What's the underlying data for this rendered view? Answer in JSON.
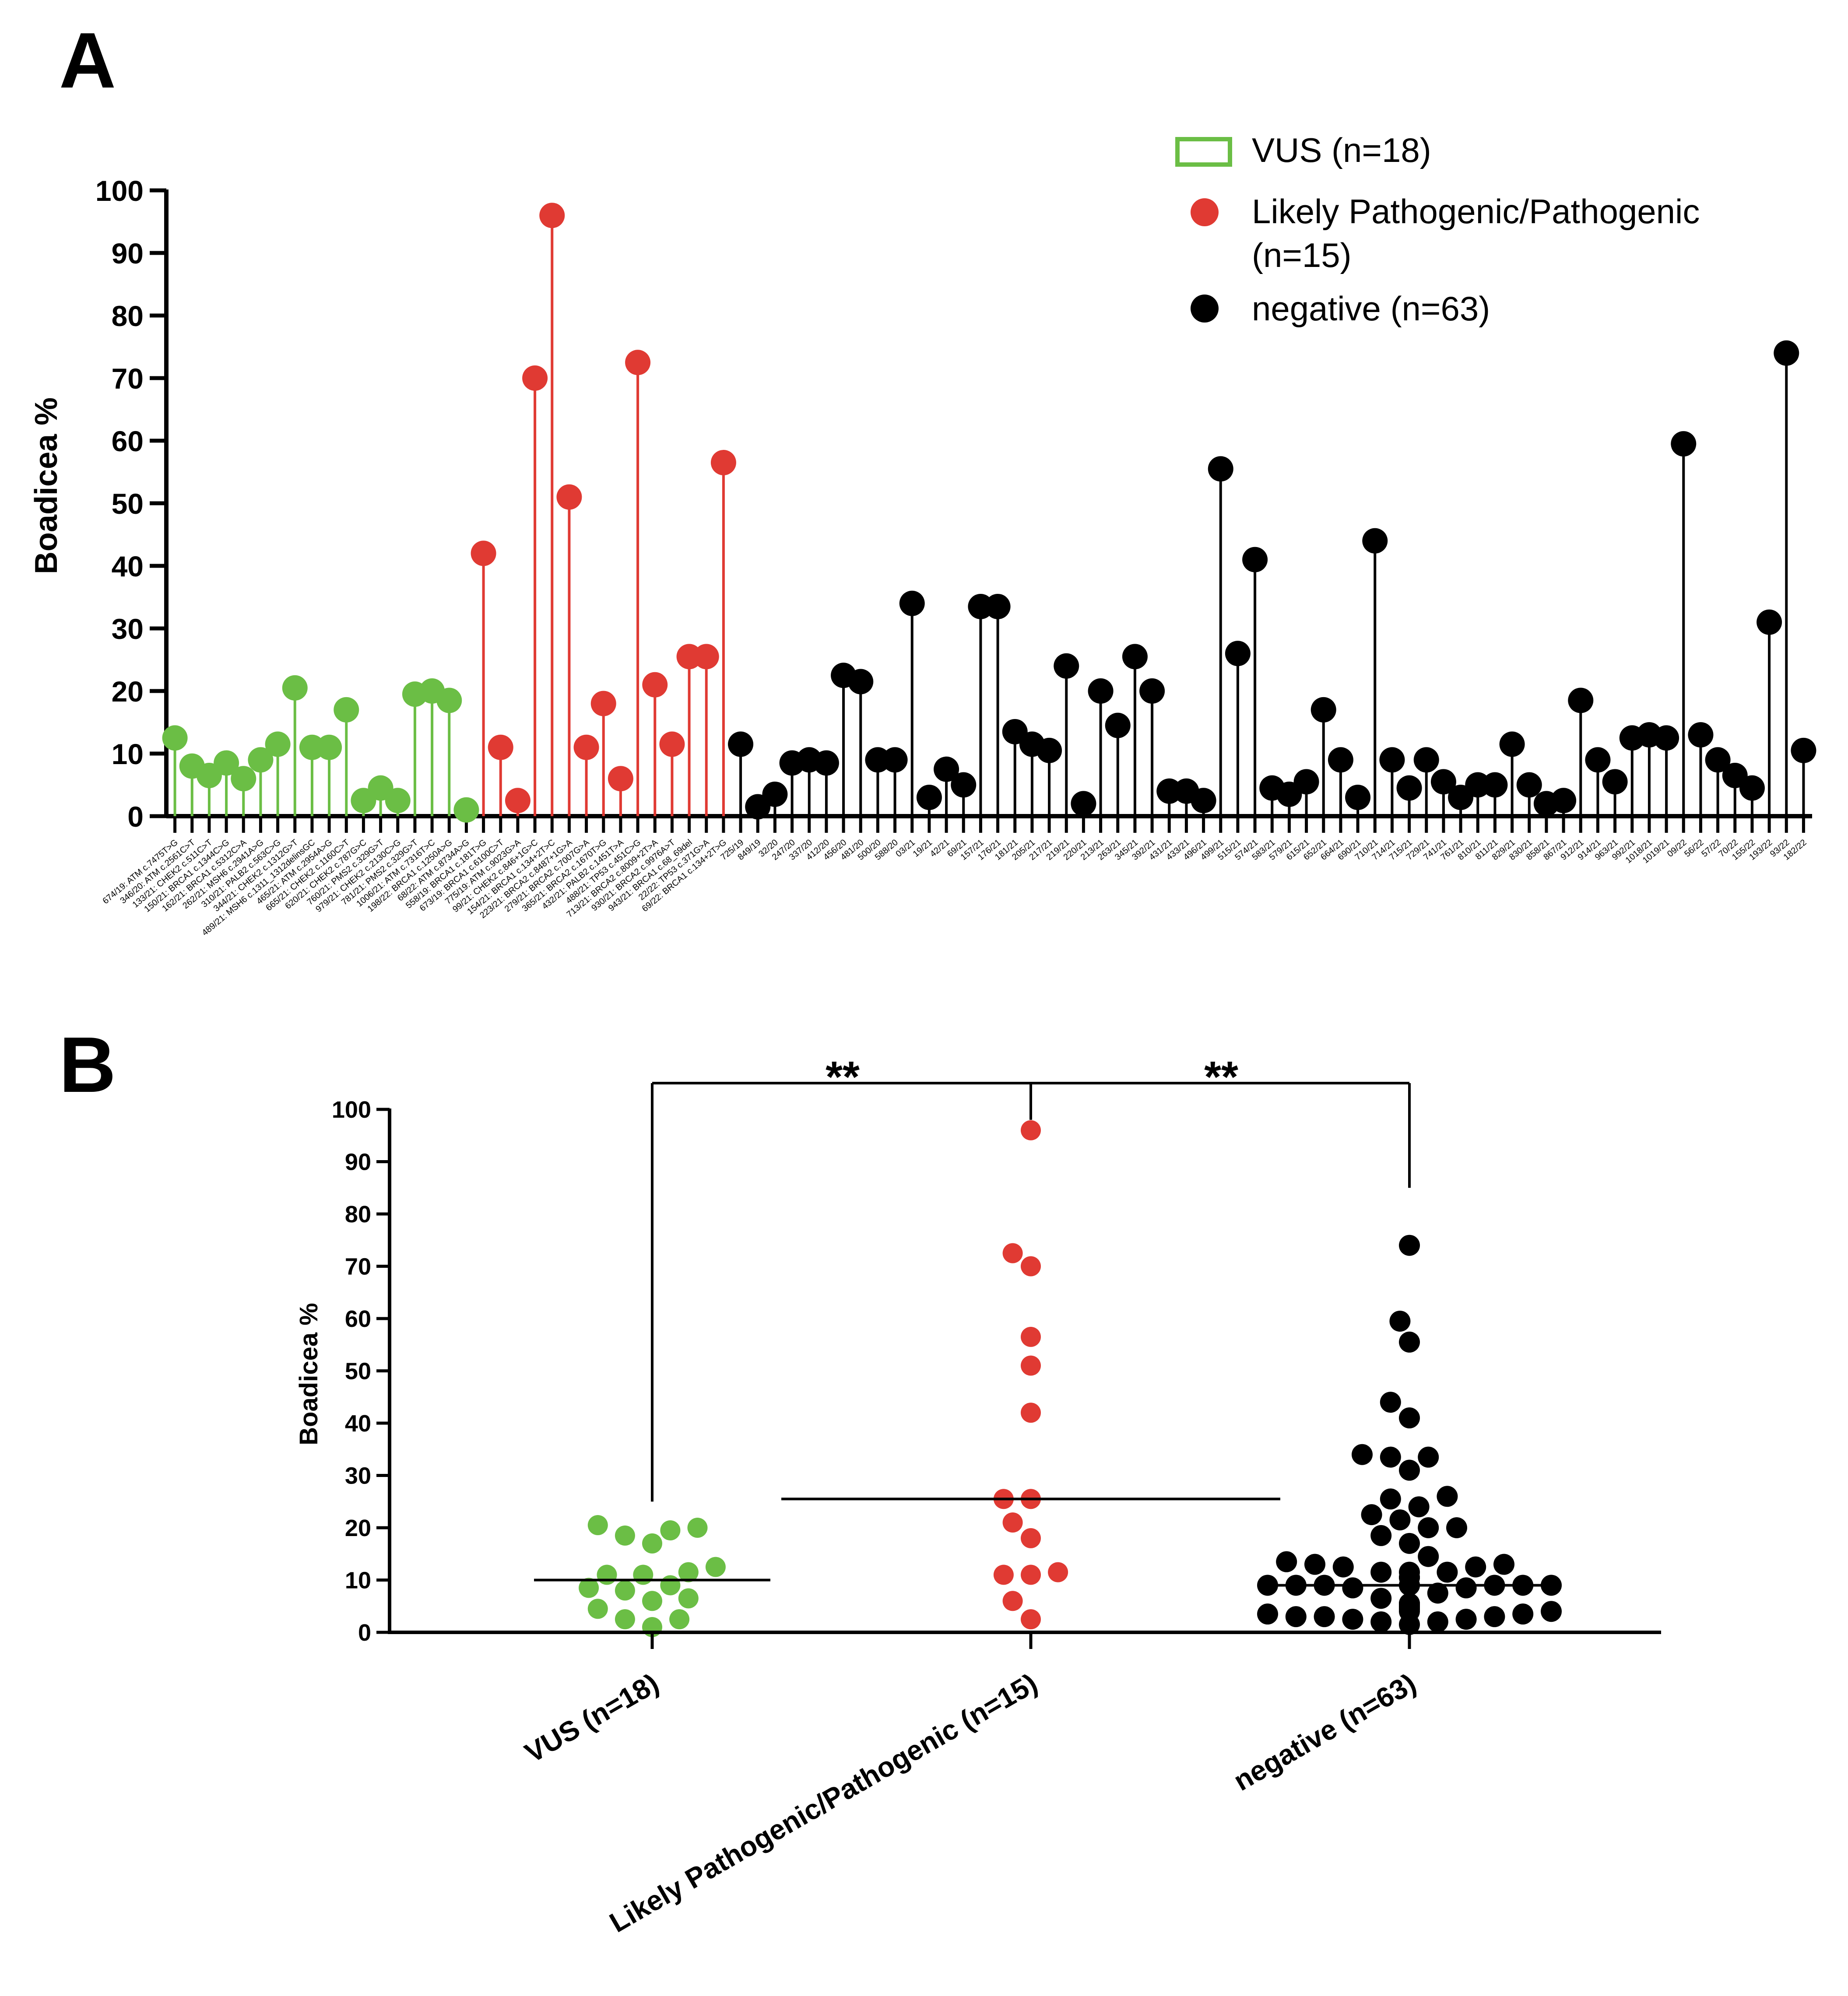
{
  "colors": {
    "vus": "#6BBE45",
    "lp": "#E03A33",
    "neg": "#000000",
    "axis": "#000000"
  },
  "chart_data": [
    {
      "panel": "A",
      "type": "lollipop",
      "ylabel": "Boadicea %",
      "ylim": [
        0,
        100
      ],
      "yticks": [
        "0",
        "10",
        "20",
        "30",
        "40",
        "50",
        "60",
        "70",
        "80",
        "90",
        "100"
      ],
      "legend": {
        "vus": "VUS (n=18)",
        "lp_line1": "Likely Pathogenic/Pathogenic",
        "lp_line2": "(n=15)",
        "neg": "negative (n=63)"
      },
      "groups": [
        {
          "key": "vus",
          "labels": [
            "674/19: ATM c.7475T>G",
            "346/20: ATM c.2561C>T",
            "133/21: CHEK2 c.511C>T",
            "150/21: BRCA1 c.1344C>G",
            "162/21: BRCA1 c.5312C>A",
            "262/21: MSH6 c.2941A>G",
            "310/21: PALB2 c.563C>G",
            "344/21: CHEK2 c.1312G>T",
            "489/21: MSH6 c.1311_1312delinsGC",
            "465/21: ATM c.2954A>G",
            "665/21: CHEK2 c.1160C>T",
            "620/21: CHEK2 c.787G>C",
            "760/21: PMS2 c.329G>T",
            "979/21: CHEK2 c.2130C>G",
            "781/21: PMS2 c.329G>T",
            "1006/21: ATM c.7316T>C",
            "198/22: BRCA1 c.1250A>G",
            "68/22: ATM c.8734A>G"
          ],
          "values": [
            12.5,
            8.0,
            6.5,
            8.5,
            6.0,
            9.0,
            11.5,
            20.5,
            11.0,
            11.0,
            17.0,
            2.5,
            4.5,
            2.5,
            19.5,
            20.0,
            18.5,
            1.0
          ]
        },
        {
          "key": "lp",
          "labels": [
            "558/19: BRCA1 c.181T>G",
            "673/19: BRCA1 c.6100C>T",
            "775/19: ATM c.9023G>A",
            "99/21: CHEK2 c.846+1G>C",
            "154/21: BRCA1 c.134+2T>C",
            "223/21: BRCA2 c.8487+1G>A",
            "279/21: BRCA2 c.7007G>A",
            "365/21: BRCA2 c.1670T>G",
            "432/21: PALB2 c.1451T>A",
            "488/21: TP53 c.451C>G",
            "713/21: BRCA2 c.8009+2T>A",
            "930/21: BRCA2 c.9976A>T",
            "943/21: BRCA1 c.68_69del",
            "22/22: TP53 c.371G>A",
            "69/22: BRCA1 c.134+2T>G"
          ],
          "values": [
            42.0,
            11.0,
            2.5,
            70.0,
            96.0,
            51.0,
            11.0,
            18.0,
            6.0,
            72.5,
            21.0,
            11.5,
            25.5,
            25.5,
            56.5
          ]
        },
        {
          "key": "neg",
          "labels": [
            "725/19",
            "849/19",
            "32/20",
            "247/20",
            "337/20",
            "412/20",
            "456/20",
            "481/20",
            "500/20",
            "588/20",
            "03/21",
            "19/21",
            "42/21",
            "69/21",
            "157/21",
            "176/21",
            "181/21",
            "205/21",
            "217/21",
            "219/21",
            "220/21",
            "213/21",
            "263/21",
            "345/21",
            "392/21",
            "431/21",
            "433/21",
            "496/21",
            "499/21",
            "515/21",
            "574/21",
            "583/21",
            "579/21",
            "615/21",
            "652/21",
            "664/21",
            "690/21",
            "710/21",
            "714/21",
            "715/21",
            "729/21",
            "741/21",
            "761/21",
            "810/21",
            "811/21",
            "829/21",
            "830/21",
            "858/21",
            "867/21",
            "912/21",
            "914/21",
            "963/21",
            "992/21",
            "1018/21",
            "1019/21",
            "09/22",
            "56/22",
            "57/22",
            "70/22",
            "155/22",
            "193/22",
            "93/22",
            "182/22"
          ],
          "values": [
            11.5,
            1.5,
            3.5,
            8.5,
            9.0,
            8.5,
            22.5,
            21.5,
            9.0,
            9.0,
            34.0,
            3.0,
            7.5,
            5.0,
            33.5,
            33.5,
            13.5,
            11.5,
            10.5,
            24.0,
            2.0,
            20.0,
            14.5,
            25.5,
            20.0,
            4.0,
            4.0,
            2.5,
            55.5,
            26.0,
            41.0,
            4.5,
            3.5,
            5.5,
            17.0,
            9.0,
            3.0,
            44.0,
            9.0,
            4.5,
            9.0,
            5.5,
            3.0,
            5.0,
            5.0,
            11.5,
            5.0,
            2.0,
            2.5,
            18.5,
            9.0,
            5.5,
            12.5,
            13.0,
            12.5,
            59.5,
            13.0,
            9.0,
            6.5,
            4.5,
            31.0,
            74.0,
            10.5
          ]
        }
      ]
    },
    {
      "panel": "B",
      "type": "scatter",
      "ylabel": "Boadicea %",
      "ylim": [
        0,
        100
      ],
      "yticks": [
        "0",
        "10",
        "20",
        "30",
        "40",
        "50",
        "60",
        "70",
        "80",
        "90",
        "100"
      ],
      "categories": [
        "VUS (n=18)",
        "Likely Pathogenic/Pathogenic (n=15)",
        "negative (n=63)"
      ],
      "medians": [
        10.0,
        25.5,
        9.0
      ],
      "significance": [
        "**",
        "**"
      ],
      "comparisons": [
        [
          "VUS (n=18)",
          "Likely Pathogenic/Pathogenic (n=15)"
        ],
        [
          "Likely Pathogenic/Pathogenic (n=15)",
          "negative (n=63)"
        ]
      ]
    }
  ],
  "panel_labels": {
    "a": "A",
    "b": "B"
  }
}
